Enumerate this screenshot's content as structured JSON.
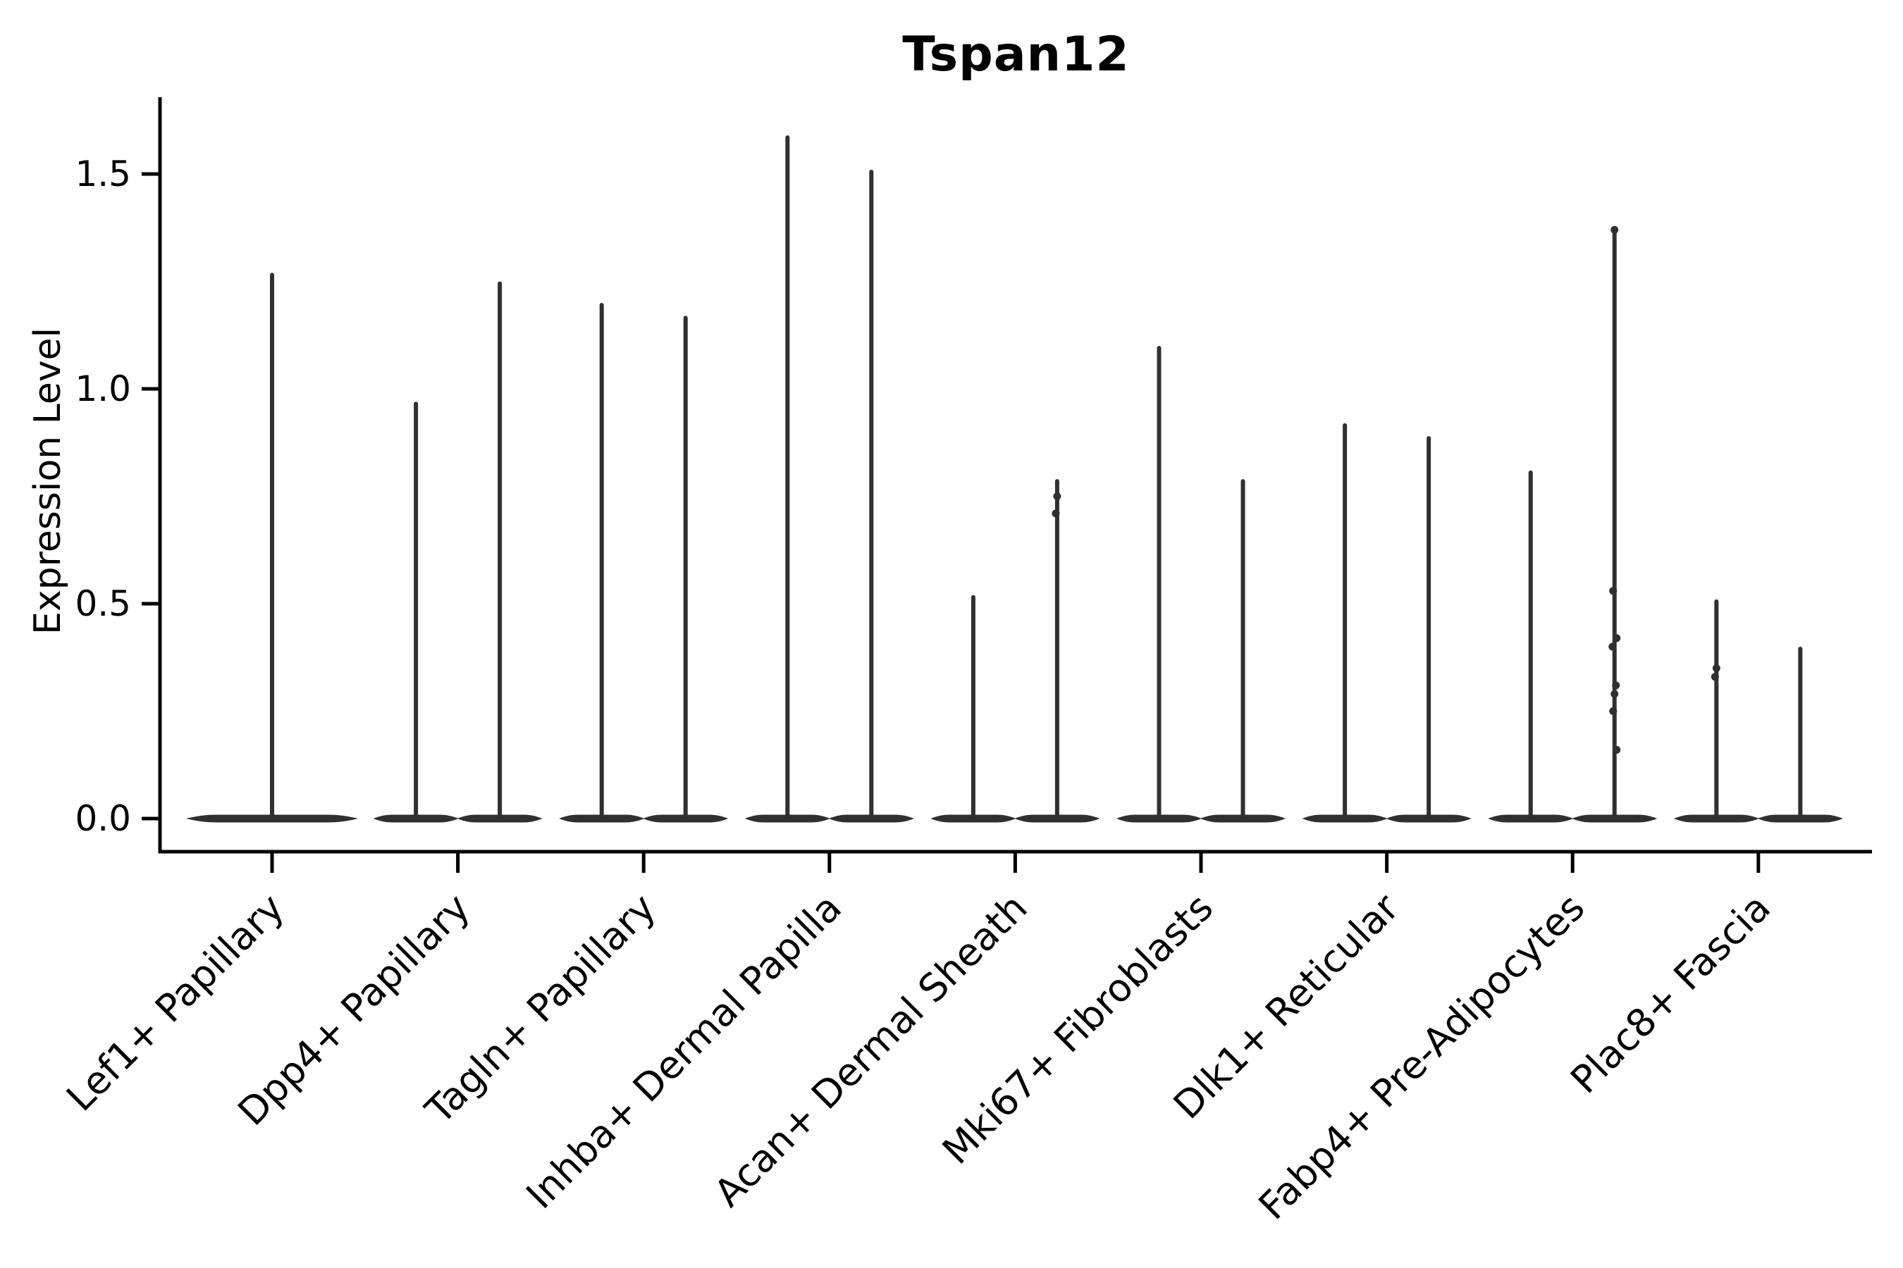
{
  "figure": {
    "title": "Tspan12"
  },
  "chart_data": {
    "type": "violin",
    "title": "Tspan12",
    "ylabel": "Expression Level",
    "xlabel": "",
    "ylim": [
      -0.08,
      1.68
    ],
    "yticks": [
      "0.0",
      "0.5",
      "1.0",
      "1.5"
    ],
    "grid": false,
    "legend": "none",
    "categories": [
      "Lef1+ Papillary",
      "Dpp4+ Papillary",
      "Tagln+ Papillary",
      "Inhba+ Dermal Papilla",
      "Acan+ Dermal Sheath",
      "Mki67+ Fibroblasts",
      "Dlk1+ Reticular",
      "Fabp4+ Pre-Adipocytes",
      "Plac8+ Fascia"
    ],
    "violins": [
      {
        "category": "Lef1+ Papillary",
        "maxima": [
          1.27
        ]
      },
      {
        "category": "Dpp4+ Papillary",
        "maxima": [
          0.97,
          1.25
        ]
      },
      {
        "category": "Tagln+ Papillary",
        "maxima": [
          1.2,
          1.17
        ]
      },
      {
        "category": "Inhba+ Dermal Papilla",
        "maxima": [
          1.59,
          1.51
        ]
      },
      {
        "category": "Acan+ Dermal Sheath",
        "maxima": [
          0.52,
          0.79
        ]
      },
      {
        "category": "Mki67+ Fibroblasts",
        "maxima": [
          1.1,
          0.79
        ]
      },
      {
        "category": "Dlk1+ Reticular",
        "maxima": [
          0.92,
          0.89
        ]
      },
      {
        "category": "Fabp4+ Pre-Adipocytes",
        "maxima": [
          0.81,
          1.37
        ]
      },
      {
        "category": "Plac8+ Fascia",
        "maxima": [
          0.51,
          0.4
        ]
      }
    ],
    "visible_points": [
      {
        "category": "Acan+ Dermal Sheath",
        "violin": 2,
        "values": [
          0.75,
          0.71
        ]
      },
      {
        "category": "Fabp4+ Pre-Adipocytes",
        "violin": 2,
        "values": [
          1.37,
          0.53,
          0.42,
          0.4,
          0.31,
          0.29,
          0.25,
          0.16
        ]
      },
      {
        "category": "Plac8+ Fascia",
        "violin": 1,
        "values": [
          0.35,
          0.33
        ]
      }
    ],
    "baseline_value": 0.0,
    "colors": {
      "violin": "#303030",
      "axis": "#000000",
      "text": "#000000",
      "background": "#ffffff"
    }
  }
}
